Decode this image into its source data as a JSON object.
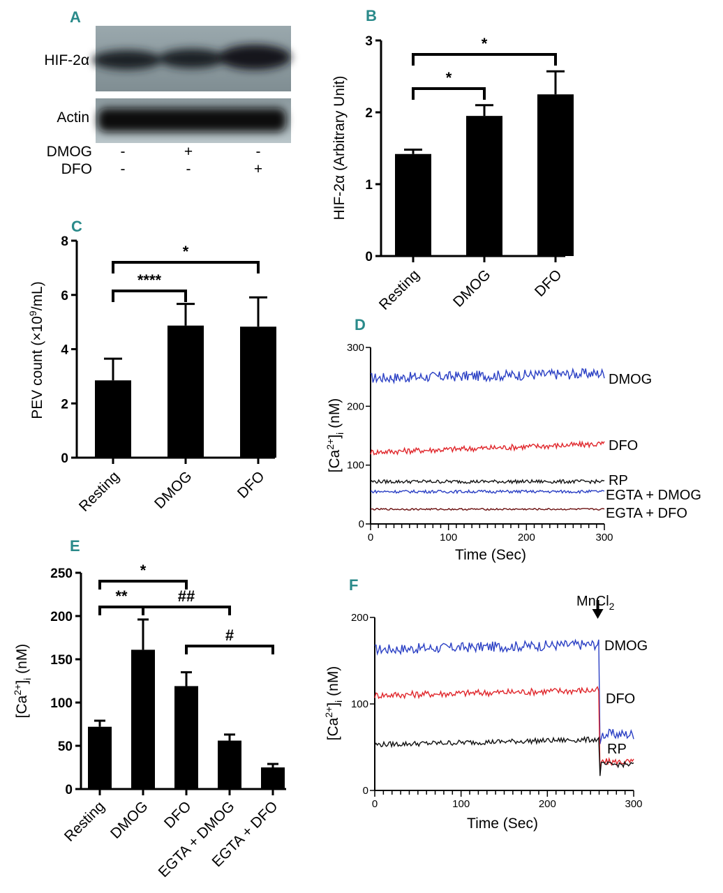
{
  "panels": {
    "a": "A",
    "b": "B",
    "c": "C",
    "d": "D",
    "e": "E",
    "f": "F"
  },
  "blot": {
    "bands": [
      "HIF-2α",
      "Actin"
    ],
    "treatments": [
      {
        "name": "DMOG",
        "marks": [
          "-",
          "+",
          "-"
        ]
      },
      {
        "name": "DFO",
        "marks": [
          "-",
          "-",
          "+"
        ]
      }
    ]
  },
  "colors": {
    "dmog": "#2a3fc4",
    "dfo": "#e0262b",
    "rp": "#111111",
    "egta_dmog": "#2a3fc4",
    "egta_dfo": "#6b1010",
    "accent": "#2a8a8a"
  },
  "chart_data": [
    {
      "id": "B",
      "type": "bar",
      "categories": [
        "Resting",
        "DMOG",
        "DFO"
      ],
      "values": [
        1.42,
        1.95,
        2.25
      ],
      "errors": [
        0.06,
        0.15,
        0.32
      ],
      "ylabel": "HIF-2α (Arbitrary Unit)",
      "ylim": [
        0,
        3
      ],
      "yticks": [
        0,
        1,
        2,
        3
      ],
      "significance": [
        {
          "from": 0,
          "to": 1,
          "label": "*"
        },
        {
          "from": 0,
          "to": 2,
          "label": "*"
        }
      ]
    },
    {
      "id": "C",
      "type": "bar",
      "categories": [
        "Resting",
        "DMOG",
        "DFO"
      ],
      "values": [
        2.85,
        4.87,
        4.83
      ],
      "errors": [
        0.8,
        0.8,
        1.08
      ],
      "ylabel_prefix": "PEV count (×10",
      "ylabel_sup": "9",
      "ylabel_suffix": "/mL)",
      "ylim": [
        0,
        8
      ],
      "yticks": [
        0,
        2,
        4,
        6,
        8
      ],
      "significance": [
        {
          "from": 0,
          "to": 1,
          "label": "****"
        },
        {
          "from": 0,
          "to": 2,
          "label": "*"
        }
      ]
    },
    {
      "id": "D",
      "type": "line",
      "xlabel": "Time (Sec)",
      "ylabel_main": "[Ca",
      "ylabel_sup": "2+",
      "ylabel_close": "]",
      "ylabel_sub": "i",
      "ylabel_unit": " (nM)",
      "xlim": [
        0,
        300
      ],
      "ylim": [
        0,
        300
      ],
      "xticks": [
        0,
        100,
        200,
        300
      ],
      "yticks": [
        0,
        100,
        200,
        300
      ],
      "series": [
        {
          "name": "DMOG",
          "baseline": 248,
          "noise": 9,
          "drift": 8
        },
        {
          "name": "DFO",
          "baseline": 122,
          "noise": 5,
          "drift": 14
        },
        {
          "name": "RP",
          "baseline": 72,
          "noise": 3,
          "drift": 0
        },
        {
          "name": "EGTA + DMOG",
          "baseline": 55,
          "noise": 2.5,
          "drift": 0
        },
        {
          "name": "EGTA + DFO",
          "baseline": 25,
          "noise": 1.5,
          "drift": 0
        }
      ]
    },
    {
      "id": "E",
      "type": "bar",
      "categories": [
        "Resting",
        "DMOG",
        "DFO",
        "EGTA + DMOG",
        "EGTA + DFO"
      ],
      "values": [
        72,
        161,
        119,
        56,
        25
      ],
      "errors": [
        7,
        35,
        16,
        7,
        4
      ],
      "ylabel_main": "[Ca",
      "ylabel_sup": "2+",
      "ylabel_close": "]",
      "ylabel_sub": "i",
      "ylabel_unit": "  (nM)",
      "ylim": [
        0,
        250
      ],
      "yticks": [
        0,
        50,
        100,
        150,
        200,
        250
      ],
      "significance": [
        {
          "from": 0,
          "to": 2,
          "label": "*"
        },
        {
          "from": 0,
          "to": 1,
          "label": "**"
        },
        {
          "from": 1,
          "to": 3,
          "label": "##"
        },
        {
          "from": 2,
          "to": 4,
          "label": "#"
        }
      ]
    },
    {
      "id": "F",
      "type": "line",
      "xlabel": "Time (Sec)",
      "ylabel_main": "[Ca",
      "ylabel_sup": "2+",
      "ylabel_close": "]",
      "ylabel_sub": "i",
      "ylabel_unit": " (nM)",
      "xlim": [
        0,
        300
      ],
      "ylim": [
        0,
        200
      ],
      "xticks": [
        0,
        100,
        200,
        300
      ],
      "yticks": [
        0,
        100,
        200
      ],
      "annotation": {
        "label_main": "MnCl",
        "label_sub": "2",
        "at": 260
      },
      "series": [
        {
          "name": "DMOG",
          "before": 163,
          "after": 65,
          "noise": 6
        },
        {
          "name": "DFO",
          "before": 110,
          "after": 33,
          "noise": 4
        },
        {
          "name": "RP",
          "before": 53,
          "after": 30,
          "noise": 3
        }
      ]
    }
  ]
}
